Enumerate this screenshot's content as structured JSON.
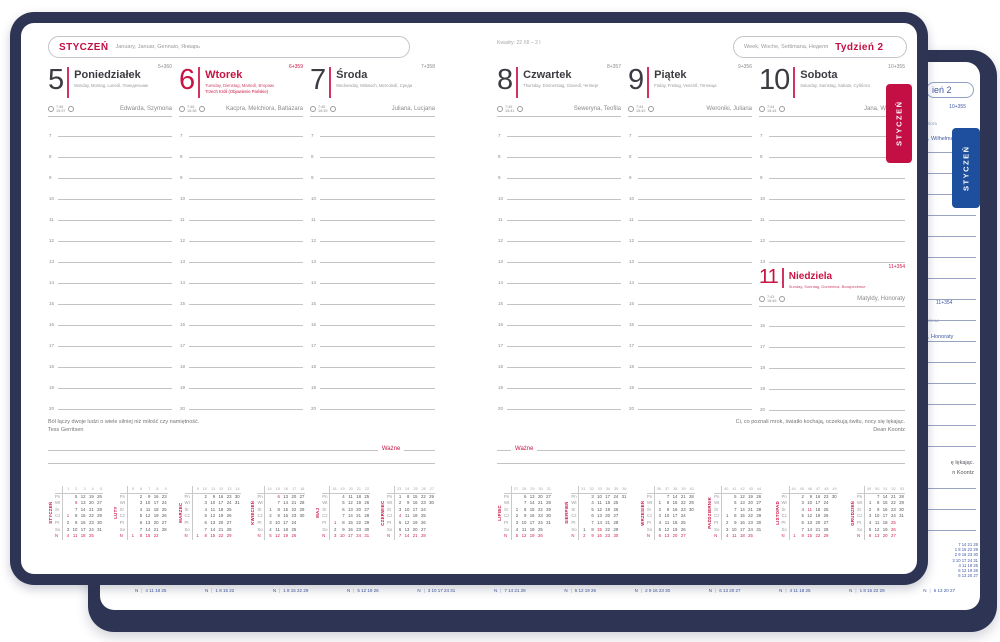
{
  "colors": {
    "cover_navy": "#2e3453",
    "tab_red": "#c30f44",
    "tab_blue": "#1d4f9e",
    "accent_red_text": "#c81343",
    "back_print_blue": "#4059a4"
  },
  "cover": {
    "front_tab": "STYCZEŃ",
    "back_tab": "STYCZEŃ"
  },
  "header": {
    "month": "STYCZEŃ",
    "month_translations": "January, Januar, Gennaio, Январь",
    "moon_info": "Kwadry: 22 XII – 2 I",
    "week_translations": "Week, Woche, Settimana, Неделя",
    "week_label": "Tydzień 2"
  },
  "labels": {
    "important": "Ważne"
  },
  "hours": [
    "7",
    "8",
    "9",
    "10",
    "11",
    "12",
    "13",
    "14",
    "15",
    "16",
    "17",
    "18",
    "19",
    "20"
  ],
  "days": [
    {
      "num": "5",
      "name": "Poniedziałek",
      "trans": "Monday, Montag, Lunedì, Понедельник",
      "doy": "5+360",
      "sunrise": "7:46",
      "sunset": "15:37",
      "names": "Edwarda, Szymona",
      "holiday": false
    },
    {
      "num": "6",
      "name": "Wtorek",
      "trans": "Tuesday, Dienstag, Martedì, Вторник",
      "holiday_name": "Trzech Króli (Objawienie Pańskie)",
      "doy": "6+359",
      "sunrise": "7:46",
      "sunset": "15:38",
      "names": "Kacpra, Melchiora, Baltazara",
      "holiday": true
    },
    {
      "num": "7",
      "name": "Środa",
      "trans": "Wednesday, Mittwoch, Mercoledì, Среда",
      "doy": "7+358",
      "sunrise": "7:45",
      "sunset": "15:39",
      "names": "Juliana, Lucjana",
      "holiday": false
    },
    {
      "num": "8",
      "name": "Czwartek",
      "trans": "Thursday, Donnerstag, Giovedì, Четверг",
      "doy": "8+357",
      "sunrise": "7:45",
      "sunset": "15:41",
      "names": "Seweryna, Teofila",
      "holiday": false
    },
    {
      "num": "9",
      "name": "Piątek",
      "trans": "Friday, Freitag, Venerdì, Пятница",
      "doy": "9+356",
      "sunrise": "7:44",
      "sunset": "15:42",
      "names": "Weroniki, Juliana",
      "holiday": false
    },
    {
      "num": "10",
      "name": "Sobota",
      "trans": "Saturday, Samstag, Sabato, Суббота",
      "doy": "10+355",
      "sunrise": "7:44",
      "sunset": "15:44",
      "names": "Jana, Wilhelma",
      "holiday": false
    },
    {
      "num": "11",
      "name": "Niedziela",
      "trans": "Sunday, Sonntag, Domenica, Воскресенье",
      "doy": "11+354",
      "sunrise": "7:43",
      "sunset": "15:46",
      "names": "Matyldy, Honoraty",
      "holiday": true
    }
  ],
  "quotes": {
    "left": {
      "text": "Ból łączy dwoje ludzi o wiele silniej niż miłość czy namiętność.",
      "author": "Tess Gerritsen"
    },
    "right": {
      "text": "Ci, co poznali mrok, światło kochają, oczekują świtu, nocy się lękając.",
      "author": "Dean Koontz"
    }
  },
  "weekday_abbr": [
    "Pn",
    "Wt",
    "Śr",
    "Cz",
    "Pt",
    "So",
    "N"
  ],
  "months": [
    {
      "label": "STYCZEŃ",
      "start": 3,
      "days": 31,
      "weeks": [
        1,
        2,
        3,
        4,
        5
      ],
      "hol": [
        1,
        6
      ]
    },
    {
      "label": "LUTY",
      "start": 6,
      "days": 28,
      "weeks": [
        5,
        6,
        7,
        8,
        9
      ],
      "hol": []
    },
    {
      "label": "MARZEC",
      "start": 6,
      "days": 31,
      "weeks": [
        9,
        10,
        11,
        12,
        13,
        14
      ],
      "hol": []
    },
    {
      "label": "KWIECIEŃ",
      "start": 2,
      "days": 30,
      "weeks": [
        14,
        15,
        16,
        17,
        18
      ],
      "hol": [
        6
      ]
    },
    {
      "label": "MAJ",
      "start": 4,
      "days": 31,
      "weeks": [
        18,
        19,
        20,
        21,
        22
      ],
      "hol": [
        1,
        3
      ]
    },
    {
      "label": "CZERWIEC",
      "start": 0,
      "days": 30,
      "weeks": [
        23,
        24,
        25,
        26,
        27
      ],
      "hol": [
        4
      ]
    },
    {
      "label": "LIPIEC",
      "start": 2,
      "days": 31,
      "weeks": [
        27,
        28,
        29,
        30,
        31
      ],
      "hol": []
    },
    {
      "label": "SIERPIEŃ",
      "start": 5,
      "days": 31,
      "weeks": [
        31,
        32,
        33,
        34,
        35,
        36
      ],
      "hol": [
        15
      ]
    },
    {
      "label": "WRZESIEŃ",
      "start": 1,
      "days": 30,
      "weeks": [
        36,
        37,
        38,
        39,
        40
      ],
      "hol": []
    },
    {
      "label": "PAŹDZIERNIK",
      "start": 3,
      "days": 31,
      "weeks": [
        40,
        41,
        42,
        43,
        44
      ],
      "hol": []
    },
    {
      "label": "LISTOPAD",
      "start": 6,
      "days": 30,
      "weeks": [
        44,
        45,
        46,
        47,
        48,
        49
      ],
      "hol": [
        11
      ]
    },
    {
      "label": "GRUDZIEŃ",
      "start": 1,
      "days": 31,
      "weeks": [
        49,
        50,
        51,
        52,
        53
      ],
      "hol": [
        25,
        26
      ]
    }
  ],
  "back_sheet": {
    "week_box_fragment": "ień 2",
    "doy_10": "10+355",
    "saturday_fragment": "бота",
    "names_10": ", Wilhelma",
    "doy_11": "11+354",
    "sunday_fragment": "сенье",
    "names_11": ", Honoraty",
    "quote_fragment": "ę lękając.",
    "author_fragment": "n Koontz",
    "minical_lines": [
      "7 14 21 28",
      "1 8 15 22 29",
      "2 9 16 23 30",
      "3 10 17 24 31",
      "4 11 18 25",
      "5 12 19 26",
      "6 13 20 27"
    ],
    "sunday_rows": [
      {
        "label": "N",
        "values": "4 11 18 25"
      },
      {
        "label": "N",
        "values": "1 8 15 22"
      },
      {
        "label": "N",
        "values": "1 8 15 22 29"
      },
      {
        "label": "N",
        "values": "5 12 19 26"
      },
      {
        "label": "N",
        "values": "3 10 17 24 31"
      },
      {
        "label": "N",
        "values": "7 14 21 28"
      },
      {
        "label": "N",
        "values": "5 12 19 26"
      },
      {
        "label": "N",
        "values": "2 9 16 23 30"
      },
      {
        "label": "N",
        "values": "6 13 20 27"
      },
      {
        "label": "N",
        "values": "4 11 18 25"
      },
      {
        "label": "N",
        "values": "1 8 15 22 29"
      },
      {
        "label": "N",
        "values": "6 13 20 27"
      }
    ]
  }
}
